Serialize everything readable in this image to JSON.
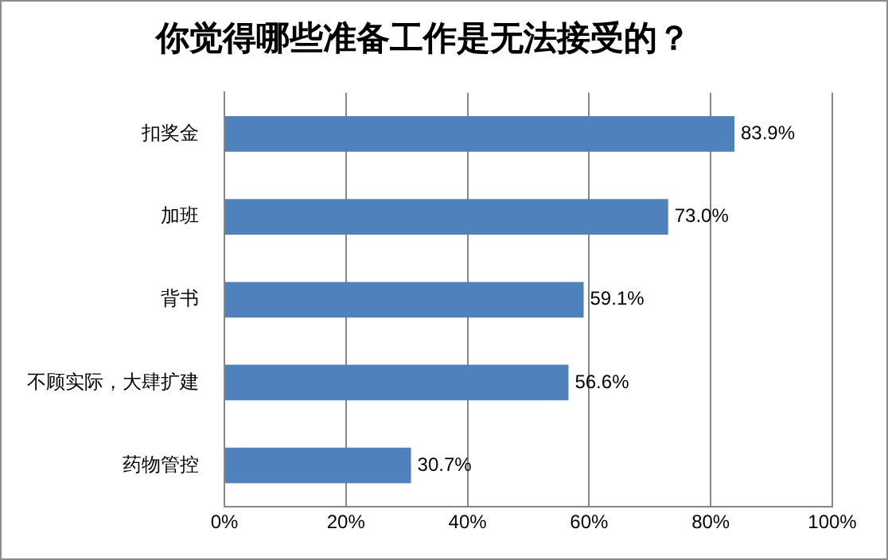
{
  "chart_data": {
    "type": "bar",
    "orientation": "horizontal",
    "title": "你觉得哪些准备工作是无法接受的？",
    "categories": [
      "扣奖金",
      "加班",
      "背书",
      "不顾实际，大肆扩建",
      "药物管控"
    ],
    "values": [
      83.9,
      73.0,
      59.1,
      56.6,
      30.7
    ],
    "value_labels": [
      "83.9%",
      "73.0%",
      "59.1%",
      "56.6%",
      "30.7%"
    ],
    "color": "#4f81bd",
    "xlim": [
      0,
      100
    ],
    "xticks": [
      {
        "value": 0,
        "label": "0%"
      },
      {
        "value": 20,
        "label": "20%"
      },
      {
        "value": 40,
        "label": "40%"
      },
      {
        "value": 60,
        "label": "60%"
      },
      {
        "value": 80,
        "label": "80%"
      },
      {
        "value": 100,
        "label": "100%"
      }
    ],
    "grid": "x",
    "legend": false
  }
}
